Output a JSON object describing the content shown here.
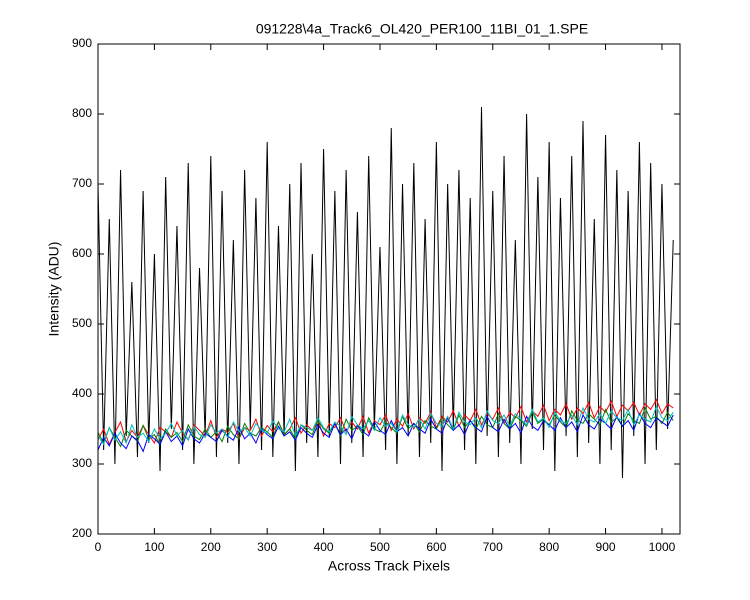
{
  "chart_data": {
    "type": "line",
    "title": "091228\\4a_Track6_OL420_PER100_11BI_01_1.SPE",
    "x_label": "Across Track Pixels",
    "y_label": "Intensity (ADU)",
    "xlim": [
      0,
      1032
    ],
    "ylim": [
      200,
      900
    ],
    "xticks": [
      0,
      100,
      200,
      300,
      400,
      500,
      600,
      700,
      800,
      900,
      1000
    ],
    "yticks": [
      200,
      300,
      400,
      500,
      600,
      700,
      800,
      900
    ],
    "grid": false,
    "x": [
      0,
      10,
      20,
      30,
      40,
      50,
      60,
      70,
      80,
      90,
      100,
      110,
      120,
      130,
      140,
      150,
      160,
      170,
      180,
      190,
      200,
      210,
      220,
      230,
      240,
      250,
      260,
      270,
      280,
      290,
      300,
      310,
      320,
      330,
      340,
      350,
      360,
      370,
      380,
      390,
      400,
      410,
      420,
      430,
      440,
      450,
      460,
      470,
      480,
      490,
      500,
      510,
      520,
      530,
      540,
      550,
      560,
      570,
      580,
      590,
      600,
      610,
      620,
      630,
      640,
      650,
      660,
      670,
      680,
      690,
      700,
      710,
      720,
      730,
      740,
      750,
      760,
      770,
      780,
      790,
      800,
      810,
      820,
      830,
      840,
      850,
      860,
      870,
      880,
      890,
      900,
      910,
      920,
      930,
      940,
      950,
      960,
      970,
      980,
      990,
      1000,
      1010,
      1020
    ],
    "series": [
      {
        "color": "#000000",
        "values": [
          700,
          320,
          650,
          300,
          720,
          340,
          560,
          310,
          690,
          330,
          600,
          290,
          710,
          350,
          640,
          320,
          730,
          300,
          580,
          340,
          740,
          310,
          690,
          330,
          620,
          300,
          720,
          350,
          680,
          320,
          760,
          310,
          640,
          340,
          700,
          290,
          730,
          330,
          600,
          310,
          750,
          340,
          690,
          300,
          720,
          330,
          660,
          310,
          740,
          350,
          610,
          320,
          780,
          300,
          700,
          340,
          730,
          310,
          650,
          330,
          760,
          290,
          700,
          350,
          720,
          320,
          680,
          300,
          810,
          340,
          690,
          310,
          740,
          330,
          620,
          300,
          800,
          350,
          710,
          320,
          760,
          290,
          680,
          340,
          740,
          310,
          790,
          330,
          650,
          300,
          770,
          320,
          720,
          280,
          690,
          340,
          760,
          300,
          730,
          320,
          700,
          350,
          620
        ]
      },
      {
        "color": "#ff0000",
        "values": [
          335,
          350,
          328,
          345,
          360,
          332,
          348,
          338,
          355,
          342,
          330,
          352,
          346,
          338,
          360,
          344,
          335,
          356,
          348,
          340,
          362,
          338,
          350,
          345,
          358,
          336,
          352,
          348,
          364,
          340,
          355,
          346,
          360,
          342,
          350,
          366,
          344,
          356,
          348,
          362,
          340,
          358,
          352,
          366,
          346,
          360,
          350,
          368,
          344,
          362,
          356,
          370,
          348,
          364,
          354,
          372,
          350,
          366,
          358,
          374,
          352,
          368,
          360,
          376,
          354,
          370,
          362,
          378,
          356,
          372,
          364,
          380,
          358,
          374,
          366,
          382,
          360,
          376,
          368,
          384,
          362,
          378,
          370,
          386,
          364,
          380,
          372,
          388,
          366,
          382,
          374,
          390,
          368,
          384,
          376,
          388,
          370,
          386,
          378,
          392,
          372,
          386,
          380
        ]
      },
      {
        "color": "#008000",
        "values": [
          345,
          330,
          352,
          338,
          325,
          348,
          340,
          332,
          355,
          336,
          342,
          328,
          350,
          338,
          345,
          332,
          356,
          340,
          335,
          350,
          338,
          346,
          332,
          354,
          342,
          336,
          358,
          344,
          340,
          352,
          346,
          338,
          360,
          342,
          350,
          336,
          356,
          348,
          342,
          362,
          350,
          344,
          358,
          340,
          364,
          348,
          354,
          342,
          366,
          350,
          346,
          360,
          352,
          344,
          368,
          350,
          358,
          346,
          362,
          354,
          350,
          366,
          356,
          348,
          370,
          352,
          362,
          350,
          368,
          356,
          352,
          372,
          358,
          350,
          368,
          362,
          354,
          374,
          358,
          364,
          356,
          370,
          360,
          352,
          376,
          362,
          358,
          372,
          364,
          356,
          378,
          360,
          366,
          354,
          372,
          362,
          358,
          380,
          364,
          368,
          358,
          374,
          362
        ]
      },
      {
        "color": "#0000ff",
        "values": [
          320,
          338,
          326,
          344,
          330,
          322,
          340,
          334,
          318,
          342,
          336,
          328,
          346,
          332,
          340,
          326,
          350,
          336,
          330,
          344,
          338,
          332,
          348,
          340,
          334,
          352,
          336,
          344,
          330,
          350,
          342,
          336,
          354,
          340,
          346,
          334,
          352,
          344,
          338,
          356,
          344,
          338,
          358,
          342,
          350,
          336,
          356,
          346,
          340,
          360,
          348,
          342,
          362,
          346,
          352,
          340,
          358,
          350,
          344,
          364,
          350,
          344,
          366,
          348,
          356,
          342,
          362,
          352,
          346,
          368,
          352,
          346,
          364,
          350,
          358,
          344,
          368,
          354,
          348,
          362,
          356,
          348,
          366,
          352,
          360,
          346,
          370,
          356,
          350,
          364,
          358,
          350,
          368,
          354,
          362,
          348,
          372,
          358,
          352,
          366,
          360,
          354,
          370
        ]
      },
      {
        "color": "#00bfbf",
        "values": [
          340,
          328,
          352,
          334,
          346,
          330,
          356,
          338,
          344,
          332,
          350,
          336,
          344,
          358,
          340,
          348,
          334,
          354,
          342,
          338,
          356,
          344,
          350,
          338,
          360,
          346,
          352,
          340,
          358,
          348,
          344,
          362,
          350,
          346,
          364,
          340,
          356,
          352,
          348,
          366,
          352,
          346,
          360,
          354,
          342,
          368,
          356,
          350,
          362,
          348,
          366,
          354,
          358,
          346,
          370,
          356,
          352,
          364,
          350,
          372,
          358,
          354,
          368,
          350,
          374,
          360,
          356,
          366,
          352,
          376,
          362,
          358,
          370,
          354,
          372,
          364,
          356,
          378,
          360,
          366,
          352,
          374,
          362,
          358,
          370,
          356,
          380,
          364,
          360,
          372,
          358,
          376,
          366,
          362,
          378,
          356,
          370,
          364,
          360,
          382,
          366,
          362,
          374
        ]
      }
    ]
  }
}
